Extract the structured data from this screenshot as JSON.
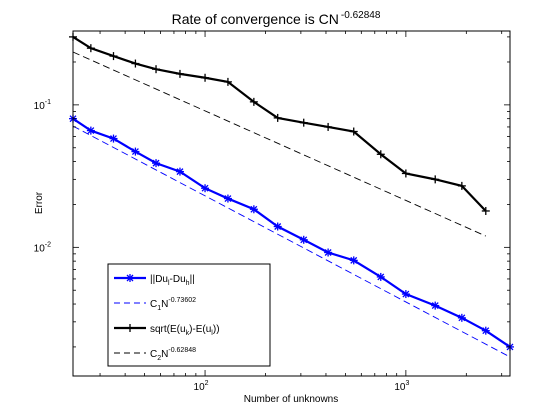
{
  "chart_data": {
    "type": "line",
    "title": "Rate of convergence is CN",
    "title_exponent": "-0.62848",
    "xlabel": "Number of unknowns",
    "ylabel": "Error",
    "xscale": "log",
    "yscale": "log",
    "xlim": [
      22,
      3300
    ],
    "ylim": [
      0.00125,
      0.33
    ],
    "grid": false,
    "legend_placement": "bottom-left",
    "x_tick_labels": [
      {
        "value": 100,
        "base": "10",
        "exp": "2"
      },
      {
        "value": 1000,
        "base": "10",
        "exp": "3"
      }
    ],
    "y_tick_labels": [
      {
        "value": 0.01,
        "base": "10",
        "exp": "-2"
      },
      {
        "value": 0.1,
        "base": "10",
        "exp": "-1"
      }
    ],
    "series": [
      {
        "name": "||Du_l-Du_h||",
        "legend_parts": [
          {
            "t": "||Du",
            "s": ""
          },
          {
            "t": "l",
            "s": "sub"
          },
          {
            "t": "-Du",
            "s": ""
          },
          {
            "t": "h",
            "s": "sub"
          },
          {
            "t": "||",
            "s": ""
          }
        ],
        "color": "#0000ff",
        "style": "solid",
        "marker": "star",
        "x": [
          22,
          27,
          35,
          45,
          57,
          75,
          100,
          130,
          175,
          230,
          310,
          410,
          550,
          750,
          1000,
          1400,
          1900,
          2500,
          3300
        ],
        "y": [
          0.08,
          0.066,
          0.058,
          0.047,
          0.039,
          0.034,
          0.026,
          0.022,
          0.0185,
          0.014,
          0.0113,
          0.0092,
          0.0081,
          0.0062,
          0.0047,
          0.0039,
          0.0032,
          0.0026,
          0.002
        ]
      },
      {
        "name": "C_1N^-0.73602",
        "legend_parts": [
          {
            "t": "C",
            "s": ""
          },
          {
            "t": "1",
            "s": "sub"
          },
          {
            "t": "N",
            "s": ""
          },
          {
            "t": "-0.73602",
            "s": "sup"
          }
        ],
        "color": "#0000ff",
        "style": "dashed",
        "marker": "none",
        "x": [
          22,
          3300
        ],
        "y": [
          0.071,
          0.0017
        ]
      },
      {
        "name": "sqrt(E(u_k)-E(u_l))",
        "legend_parts": [
          {
            "t": "sqrt(E(u",
            "s": ""
          },
          {
            "t": "k",
            "s": "sub"
          },
          {
            "t": ")-E(u",
            "s": ""
          },
          {
            "t": "l",
            "s": "sub"
          },
          {
            "t": "))",
            "s": ""
          }
        ],
        "color": "#000000",
        "style": "solid",
        "marker": "plus",
        "x": [
          22,
          27,
          35,
          45,
          57,
          75,
          100,
          130,
          175,
          230,
          310,
          410,
          550,
          750,
          1000,
          1400,
          1900,
          2500
        ],
        "y": [
          0.3,
          0.25,
          0.22,
          0.195,
          0.178,
          0.165,
          0.155,
          0.145,
          0.105,
          0.081,
          0.075,
          0.07,
          0.065,
          0.045,
          0.033,
          0.03,
          0.027,
          0.018
        ]
      },
      {
        "name": "C_2N^-0.62848",
        "legend_parts": [
          {
            "t": "C",
            "s": ""
          },
          {
            "t": "2",
            "s": "sub"
          },
          {
            "t": "N",
            "s": ""
          },
          {
            "t": "-0.62848",
            "s": "sup"
          }
        ],
        "color": "#000000",
        "style": "dashed",
        "marker": "none",
        "x": [
          22,
          2500
        ],
        "y": [
          0.235,
          0.012
        ]
      }
    ]
  }
}
